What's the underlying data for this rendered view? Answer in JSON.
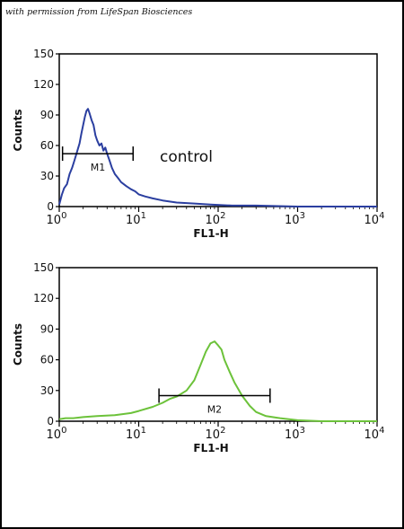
{
  "credit": "with permission from LifeSpan Biosciences",
  "chart_data": [
    {
      "type": "line",
      "xscale": "log",
      "xlabel": "FL1-H",
      "ylabel": "Counts",
      "xlim": [
        1,
        10000
      ],
      "ylim": [
        0,
        150
      ],
      "yticks": [
        "0",
        "30",
        "60",
        "90",
        "120",
        "150"
      ],
      "xticks": [
        {
          "base": "10",
          "exp": "0"
        },
        {
          "base": "10",
          "exp": "1"
        },
        {
          "base": "10",
          "exp": "2"
        },
        {
          "base": "10",
          "exp": "3"
        },
        {
          "base": "10",
          "exp": "4"
        }
      ],
      "annotation": "control",
      "line_color": "#2b3fa0",
      "gate": {
        "label": "M1",
        "x_start": 1.1,
        "x_end": 8.5,
        "y": 52
      },
      "series": [
        {
          "x": [
            1.0,
            1.08,
            1.15,
            1.25,
            1.35,
            1.45,
            1.55,
            1.65,
            1.8,
            1.9,
            2.0,
            2.1,
            2.2,
            2.3,
            2.4,
            2.55,
            2.7,
            2.85,
            3.0,
            3.2,
            3.4,
            3.6,
            3.8,
            4.0,
            4.3,
            4.6,
            5.0,
            5.5,
            6.0,
            7.0,
            8.0,
            9.0,
            10,
            12,
            15,
            20,
            30,
            50,
            80,
            150,
            300,
            1000,
            10000
          ],
          "y": [
            2,
            12,
            18,
            22,
            32,
            38,
            45,
            52,
            62,
            72,
            80,
            88,
            94,
            96,
            92,
            85,
            80,
            70,
            65,
            60,
            62,
            55,
            58,
            52,
            45,
            38,
            32,
            28,
            24,
            20,
            17,
            15,
            12,
            10,
            8,
            6,
            4,
            3,
            2,
            1,
            1,
            0,
            0
          ]
        }
      ]
    },
    {
      "type": "line",
      "xscale": "log",
      "xlabel": "FL1-H",
      "ylabel": "Counts",
      "xlim": [
        1,
        10000
      ],
      "ylim": [
        0,
        150
      ],
      "yticks": [
        "0",
        "30",
        "60",
        "90",
        "120",
        "150"
      ],
      "xticks": [
        {
          "base": "10",
          "exp": "0"
        },
        {
          "base": "10",
          "exp": "1"
        },
        {
          "base": "10",
          "exp": "2"
        },
        {
          "base": "10",
          "exp": "3"
        },
        {
          "base": "10",
          "exp": "4"
        }
      ],
      "line_color": "#6cc23a",
      "gate": {
        "label": "M2",
        "x_start": 18,
        "x_end": 450,
        "y": 25
      },
      "series": [
        {
          "x": [
            1.0,
            1.2,
            1.5,
            2.0,
            3.0,
            5.0,
            8.0,
            10,
            15,
            20,
            25,
            30,
            40,
            50,
            60,
            70,
            80,
            90,
            100,
            110,
            120,
            140,
            160,
            200,
            250,
            300,
            400,
            600,
            1000,
            2000,
            10000
          ],
          "y": [
            2,
            3,
            3,
            4,
            5,
            6,
            8,
            10,
            14,
            18,
            22,
            24,
            30,
            40,
            55,
            68,
            76,
            78,
            74,
            70,
            60,
            48,
            38,
            25,
            15,
            9,
            5,
            3,
            1,
            0,
            0
          ]
        }
      ]
    }
  ]
}
